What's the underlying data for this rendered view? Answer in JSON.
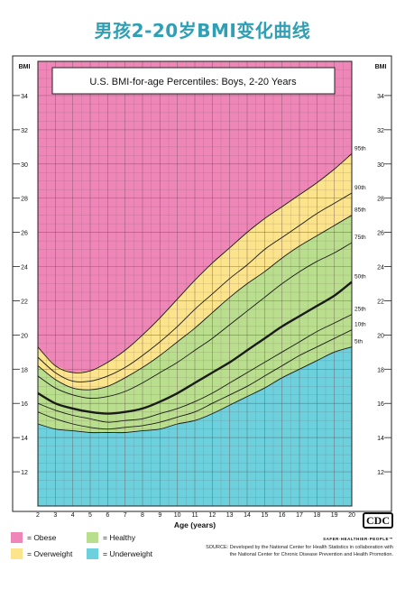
{
  "page": {
    "headline": "男孩2-20岁BMI变化曲线"
  },
  "legend": [
    {
      "label": "= Obese",
      "color": "#ee86b8"
    },
    {
      "label": "= Healthy",
      "color": "#b9df8e"
    },
    {
      "label": "= Overweight",
      "color": "#fbe48b"
    },
    {
      "label": "= Underweight",
      "color": "#6cd0dd"
    }
  ],
  "logo": {
    "text": "CDC",
    "tagline": "SAFER·HEALTHIER·PEOPLE™"
  },
  "source": {
    "line1": "SOURCE: Developed by the National Center for Health Statistics in collaboration with",
    "line2": "the National Center for Chronic Disease Prevention and Health Promotion."
  },
  "chart_data": {
    "type": "line",
    "title": "U.S. BMI-for-age Percentiles: Boys, 2-20 Years",
    "xlabel": "Age (years)",
    "ylabel": "BMI",
    "xlim": [
      2,
      20
    ],
    "ylim": [
      10,
      36
    ],
    "x_ticks": [
      2,
      3,
      4,
      5,
      6,
      7,
      8,
      9,
      10,
      11,
      12,
      13,
      14,
      15,
      16,
      17,
      18,
      19,
      20
    ],
    "y_ticks": [
      12,
      14,
      16,
      18,
      20,
      22,
      24,
      26,
      28,
      30,
      32,
      34
    ],
    "grid": true,
    "bands": [
      {
        "name": "Obese",
        "color": "#ee86b8"
      },
      {
        "name": "Overweight",
        "color": "#fbe48b"
      },
      {
        "name": "Healthy",
        "color": "#b9df8e"
      },
      {
        "name": "Underweight",
        "color": "#6cd0dd"
      }
    ],
    "x": [
      2,
      3,
      4,
      5,
      6,
      7,
      8,
      9,
      10,
      11,
      12,
      13,
      14,
      15,
      16,
      17,
      18,
      19,
      20
    ],
    "series": [
      {
        "name": "95th",
        "values": [
          19.3,
          18.2,
          17.8,
          17.9,
          18.4,
          19.1,
          20.0,
          21.0,
          22.1,
          23.2,
          24.2,
          25.1,
          26.0,
          26.8,
          27.5,
          28.2,
          28.9,
          29.7,
          30.6
        ]
      },
      {
        "name": "90th",
        "values": [
          18.7,
          17.8,
          17.3,
          17.3,
          17.6,
          18.1,
          18.8,
          19.6,
          20.5,
          21.5,
          22.4,
          23.3,
          24.1,
          25.0,
          25.7,
          26.4,
          27.1,
          27.7,
          28.3
        ]
      },
      {
        "name": "85th",
        "values": [
          18.2,
          17.4,
          16.9,
          16.8,
          17.0,
          17.5,
          18.1,
          18.8,
          19.6,
          20.4,
          21.3,
          22.2,
          23.0,
          23.7,
          24.5,
          25.2,
          25.8,
          26.4,
          27.0
        ]
      },
      {
        "name": "75th",
        "values": [
          17.6,
          16.9,
          16.5,
          16.3,
          16.4,
          16.7,
          17.2,
          17.8,
          18.4,
          19.1,
          19.8,
          20.6,
          21.4,
          22.2,
          23.0,
          23.7,
          24.3,
          24.8,
          25.4
        ]
      },
      {
        "name": "50th",
        "values": [
          16.6,
          16.0,
          15.7,
          15.5,
          15.4,
          15.5,
          15.7,
          16.1,
          16.6,
          17.2,
          17.8,
          18.4,
          19.1,
          19.8,
          20.5,
          21.1,
          21.7,
          22.3,
          23.1
        ]
      },
      {
        "name": "25th",
        "values": [
          16.0,
          15.6,
          15.3,
          15.1,
          14.9,
          15.0,
          15.1,
          15.4,
          15.7,
          16.1,
          16.6,
          17.2,
          17.8,
          18.4,
          19.0,
          19.6,
          20.2,
          20.7,
          21.2
        ]
      },
      {
        "name": "10th",
        "values": [
          15.5,
          15.1,
          14.8,
          14.6,
          14.5,
          14.6,
          14.7,
          14.9,
          15.2,
          15.5,
          16.0,
          16.5,
          17.0,
          17.6,
          18.2,
          18.8,
          19.3,
          19.8,
          20.3
        ]
      },
      {
        "name": "5th",
        "values": [
          14.8,
          14.5,
          14.4,
          14.3,
          14.3,
          14.3,
          14.4,
          14.5,
          14.8,
          15.0,
          15.4,
          15.9,
          16.4,
          16.9,
          17.5,
          18.0,
          18.5,
          19.0,
          19.3
        ]
      }
    ]
  }
}
